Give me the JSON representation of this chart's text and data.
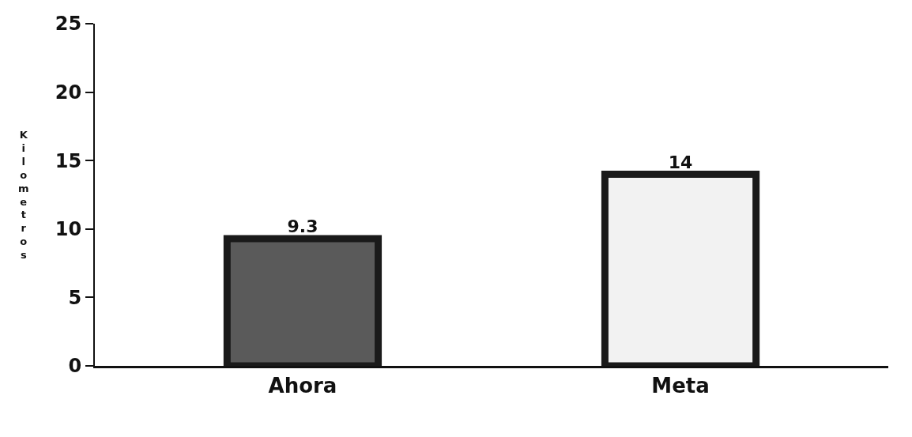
{
  "chart_data": {
    "type": "bar",
    "ylabel": "Kilometros",
    "categories": [
      "Ahora",
      "Meta"
    ],
    "values": [
      9.3,
      14
    ],
    "colors": [
      "#5a5a5a",
      "#f2f2f2"
    ],
    "ylim": [
      0,
      25
    ],
    "yticks": [
      0,
      5,
      10,
      15,
      20,
      25
    ],
    "data_labels": true
  }
}
